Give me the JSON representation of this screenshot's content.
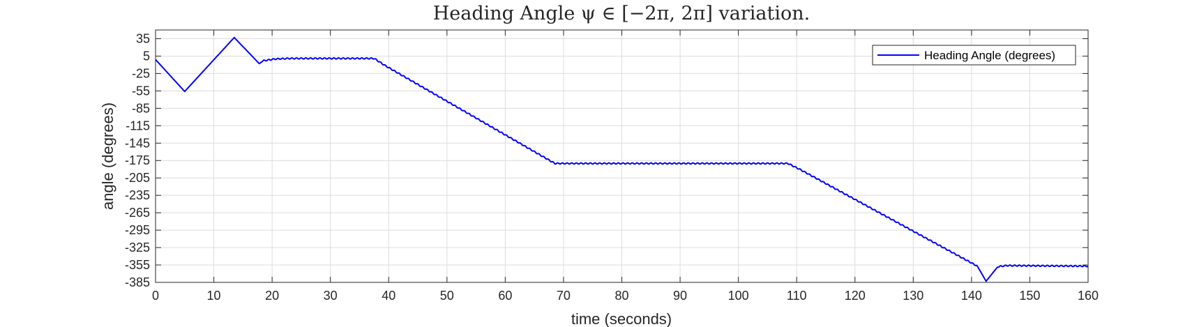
{
  "chart_data": {
    "type": "line",
    "title": "Heading Angle ψ ∈ [−2π, 2π] variation.",
    "xlabel": "time (seconds)",
    "ylabel": "angle (degrees)",
    "xlim": [
      0,
      160
    ],
    "ylim": [
      -385,
      50
    ],
    "xticks": [
      0,
      10,
      20,
      30,
      40,
      50,
      60,
      70,
      80,
      90,
      100,
      110,
      120,
      130,
      140,
      150,
      160
    ],
    "yticks": [
      35,
      5,
      -25,
      -55,
      -85,
      -115,
      -145,
      -175,
      -205,
      -235,
      -265,
      -295,
      -325,
      -355,
      -385
    ],
    "grid": true,
    "legend_position": "top-right",
    "series": [
      {
        "name": "Heading Angle (degrees)",
        "color": "#0000ff",
        "points": [
          [
            0,
            -1
          ],
          [
            5,
            -56
          ],
          [
            13.5,
            37
          ],
          [
            17.8,
            -8
          ],
          [
            18.5,
            -3
          ],
          [
            20.5,
            0
          ],
          [
            23,
            1
          ],
          [
            37.5,
            1
          ],
          [
            39.5,
            -12
          ],
          [
            68.5,
            -180
          ],
          [
            108.5,
            -180
          ],
          [
            110.5,
            -190
          ],
          [
            141,
            -357
          ],
          [
            142.5,
            -383
          ],
          [
            144.5,
            -358
          ],
          [
            146,
            -356
          ],
          [
            160,
            -357
          ]
        ]
      }
    ]
  }
}
